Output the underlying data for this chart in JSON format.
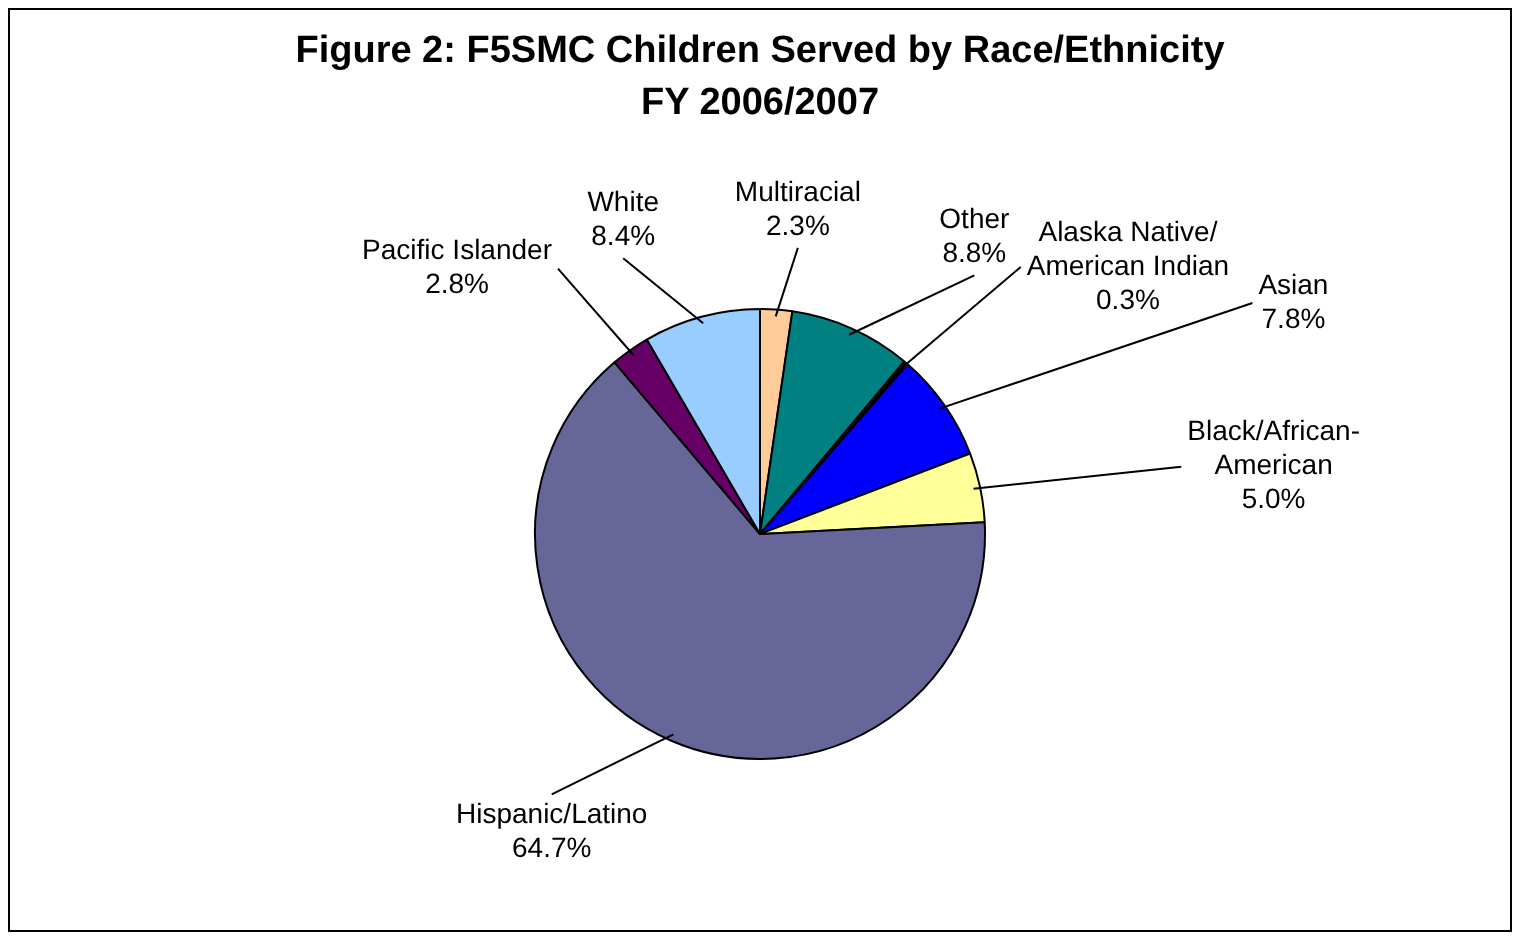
{
  "chart_data": {
    "type": "pie",
    "title": "Figure 2: F5SMC Children Served by Race/Ethnicity\nFY 2006/2007",
    "categories": [
      "Multiracial",
      "Other",
      "Alaska Native/\nAmerican Indian",
      "Asian",
      "Black/African-\nAmerican",
      "Hispanic/Latino",
      "Pacific Islander",
      "White"
    ],
    "values": [
      2.3,
      8.8,
      0.3,
      7.8,
      5.0,
      64.7,
      2.8,
      8.4
    ],
    "value_labels": [
      "2.3%",
      "8.8%",
      "0.3%",
      "7.8%",
      "5.0%",
      "64.7%",
      "2.8%",
      "8.4%"
    ],
    "colors": [
      "#ffcc99",
      "#008080",
      "#000000",
      "#0000ff",
      "#ffff99",
      "#666699",
      "#660066",
      "#99ccff"
    ],
    "legend": false
  }
}
